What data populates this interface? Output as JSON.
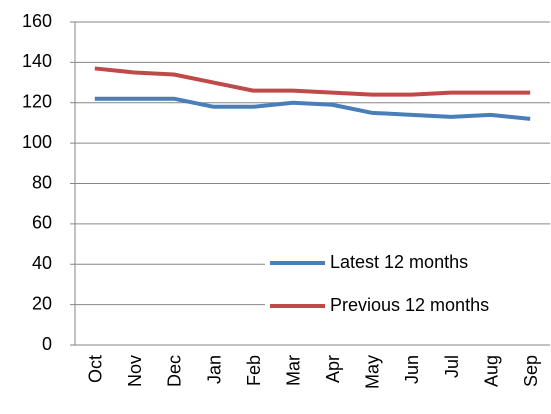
{
  "chart_data": {
    "type": "line",
    "categories": [
      "Oct",
      "Nov",
      "Dec",
      "Jan",
      "Feb",
      "Mar",
      "Apr",
      "May",
      "Jun",
      "Jul",
      "Aug",
      "Sep"
    ],
    "series": [
      {
        "name": "Latest 12 months",
        "color": "#4a7ebb",
        "values": [
          122,
          122,
          122,
          118,
          118,
          120,
          119,
          115,
          114,
          113,
          114,
          112
        ]
      },
      {
        "name": "Previous 12 months",
        "color": "#be4b48",
        "values": [
          137,
          135,
          134,
          130,
          126,
          126,
          125,
          124,
          124,
          125,
          125,
          125
        ]
      }
    ],
    "ylim": [
      0,
      160
    ],
    "yticks": [
      0,
      20,
      40,
      60,
      80,
      100,
      120,
      140,
      160
    ],
    "grid": true,
    "legend": "lower right"
  }
}
